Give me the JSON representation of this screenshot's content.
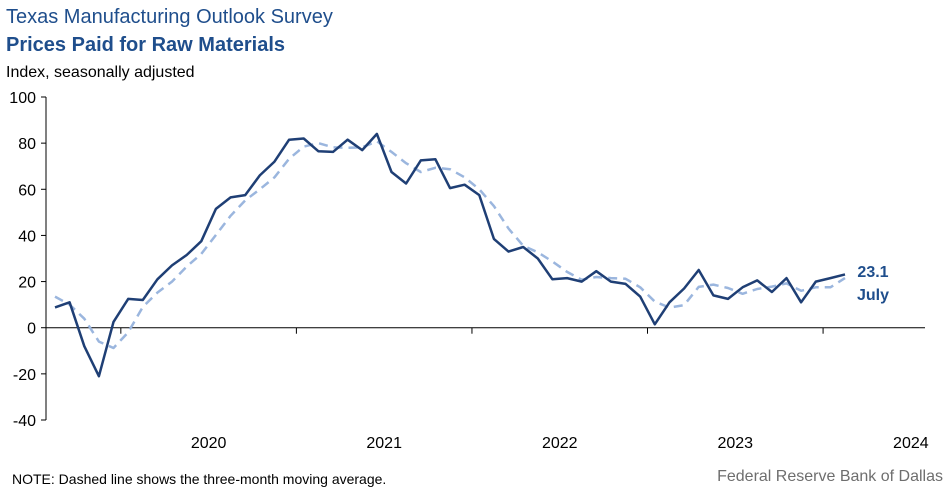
{
  "header": {
    "title": "Texas Manufacturing Outlook Survey",
    "subtitle": "Prices Paid for Raw Materials",
    "units": "Index, seasonally adjusted"
  },
  "footer": {
    "note": "NOTE: Dashed line shows the three-month  moving average.",
    "source": "Federal Reserve Bank of Dallas"
  },
  "chart_data": {
    "type": "line",
    "x_start": "2019-08",
    "x_end": "2024-07",
    "ylim": [
      -40,
      100
    ],
    "yticks": [
      -40,
      -20,
      0,
      20,
      40,
      60,
      80,
      100
    ],
    "xtick_labels": [
      "2020",
      "2021",
      "2022",
      "2023",
      "2024"
    ],
    "grid": false,
    "colors": {
      "index": "#1f3f75",
      "moving_average": "#9bb6de",
      "label": "#1f4e8c"
    },
    "series": [
      {
        "name": "Index",
        "style": "solid",
        "values": [
          8.8,
          11.0,
          -8.0,
          -21.0,
          2.5,
          12.5,
          12.0,
          21.0,
          27.0,
          31.5,
          37.5,
          51.5,
          56.5,
          57.5,
          66.0,
          72.0,
          81.5,
          82.0,
          76.5,
          76.2,
          81.5,
          77.0,
          84.0,
          67.5,
          62.5,
          72.5,
          73.0,
          60.5,
          62.0,
          57.5,
          38.5,
          33.0,
          35.0,
          30.0,
          21.0,
          21.5,
          20.0,
          24.5,
          20.0,
          19.0,
          13.5,
          1.5,
          11.0,
          17.0,
          25.0,
          14.0,
          12.5,
          17.5,
          20.5,
          15.5,
          21.5,
          11.0,
          20.0,
          21.5,
          23.1
        ]
      },
      {
        "name": "Three-month moving average",
        "style": "dashed",
        "values": [
          13.5,
          10.0,
          3.9,
          -6.0,
          -8.8,
          -2.0,
          9.0,
          15.2,
          20.0,
          26.5,
          32.0,
          40.2,
          48.5,
          55.2,
          60.0,
          65.2,
          73.2,
          78.5,
          80.0,
          78.2,
          78.0,
          78.2,
          80.8,
          76.2,
          71.3,
          67.5,
          69.3,
          68.7,
          65.2,
          60.0,
          52.7,
          43.0,
          35.5,
          32.7,
          28.7,
          24.2,
          20.8,
          22.0,
          21.5,
          21.2,
          17.5,
          11.3,
          8.7,
          9.8,
          17.7,
          18.7,
          17.2,
          14.7,
          16.8,
          17.8,
          19.2,
          16.0,
          17.5,
          17.5,
          21.5
        ]
      }
    ],
    "annotation": {
      "value": "23.1",
      "month": "July"
    }
  }
}
